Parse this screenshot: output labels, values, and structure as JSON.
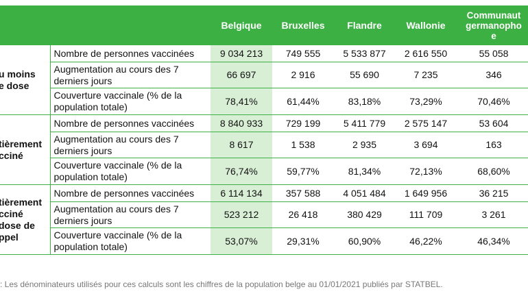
{
  "headers": [
    "",
    "",
    "Belgique",
    "Bruxelles",
    "Flandre",
    "Wallonie",
    "Communauté germanophone"
  ],
  "groups": [
    {
      "name_lines": [
        "u moins",
        "e dose"
      ],
      "rows": [
        {
          "label": "Nombre de personnes vaccinées",
          "values": [
            "9 034 213",
            "749 555",
            "5 533 877",
            "2 616 550",
            "55 058"
          ]
        },
        {
          "label": "Augmentation au cours des 7 derniers jours",
          "values": [
            "66 697",
            "2 916",
            "55 690",
            "7 235",
            "346"
          ]
        },
        {
          "label": "Couverture vaccinale (% de la population totale)",
          "values": [
            "78,41%",
            "61,44%",
            "83,18%",
            "73,29%",
            "70,46%"
          ]
        }
      ]
    },
    {
      "name_lines": [
        "tièrement",
        "cciné"
      ],
      "rows": [
        {
          "label": "Nombre de personnes vaccinées",
          "values": [
            "8 840 933",
            "729 199",
            "5 411 779",
            "2 575 147",
            "53 604"
          ]
        },
        {
          "label": "Augmentation au cours des 7 derniers jours",
          "values": [
            "8 617",
            "1 538",
            "2 935",
            "3 694",
            "163"
          ]
        },
        {
          "label": "Couverture vaccinale (% de la population totale)",
          "values": [
            "76,74%",
            "59,77%",
            "81,34%",
            "72,13%",
            "68,60%"
          ]
        }
      ]
    },
    {
      "name_lines": [
        "tièrement",
        "cciné",
        "dose de",
        "ppel"
      ],
      "rows": [
        {
          "label": "Nombre de personnes vaccinées",
          "values": [
            "6 114 134",
            "357 588",
            "4 051 484",
            "1 649 956",
            "36 215"
          ]
        },
        {
          "label": "Augmentation au cours des 7 derniers jours",
          "values": [
            "523 212",
            "26 418",
            "380 429",
            "111 709",
            "3 261"
          ]
        },
        {
          "label": "Couverture vaccinale (% de la population totale)",
          "values": [
            "53,07%",
            "29,31%",
            "60,90%",
            "46,22%",
            "46,34%"
          ]
        }
      ]
    }
  ],
  "note": ": Les dénominateurs utilisés pour ces calculs sont les chiffres de la population belge au 01/01/2021 publiés par STATBEL."
}
